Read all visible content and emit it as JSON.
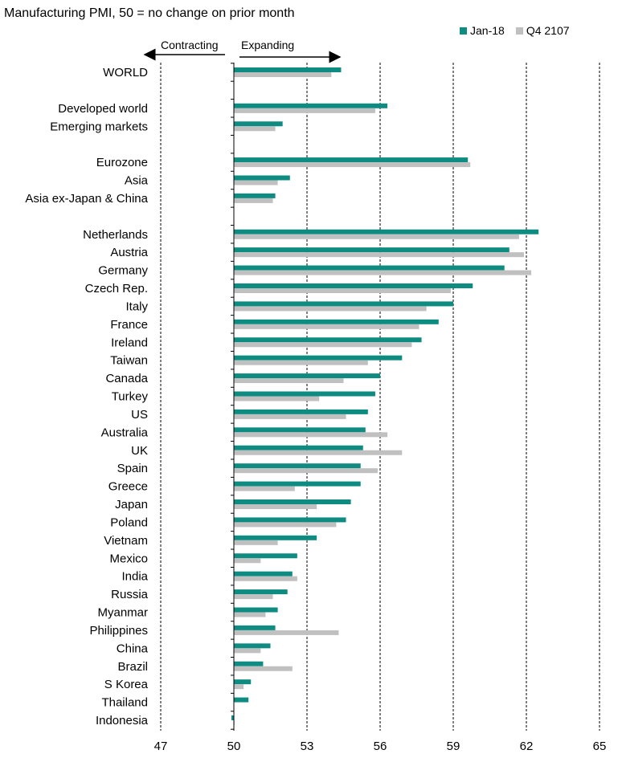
{
  "chart_data": {
    "type": "bar",
    "orientation": "horizontal",
    "title": "Manufacturing PMI, 50 = no change on prior month",
    "annotations": {
      "left": "Contracting",
      "right": "Expanding"
    },
    "xlim": [
      47,
      65
    ],
    "baseline": 50,
    "ticks": [
      "47",
      "50",
      "53",
      "56",
      "59",
      "62",
      "65"
    ],
    "tick_values": [
      47,
      50,
      53,
      56,
      59,
      62,
      65
    ],
    "grid": "vertical dashed",
    "legend_position": "top-right",
    "categories": [
      "WORLD",
      "",
      "Developed world",
      "Emerging markets",
      "",
      "Eurozone",
      "Asia",
      "Asia ex-Japan & China",
      "",
      "Netherlands",
      "Austria",
      "Germany",
      "Czech Rep.",
      "Italy",
      "France",
      "Ireland",
      "Taiwan",
      "Canada",
      "Turkey",
      "US",
      "Australia",
      "UK",
      "Spain",
      "Greece",
      "Japan",
      "Poland",
      "Vietnam",
      "Mexico",
      "India",
      "Russia",
      "Myanmar",
      "Philippines",
      "China",
      "Brazil",
      "S Korea",
      "Thailand",
      "Indonesia"
    ],
    "series": [
      {
        "name": "Jan-18",
        "color": "#0e8c82",
        "values": [
          54.4,
          null,
          56.3,
          52.0,
          null,
          59.6,
          52.3,
          51.7,
          null,
          62.5,
          61.3,
          61.1,
          59.8,
          59.0,
          58.4,
          57.7,
          56.9,
          56.0,
          55.8,
          55.5,
          55.4,
          55.3,
          55.2,
          55.2,
          54.8,
          54.6,
          53.4,
          52.6,
          52.4,
          52.2,
          51.8,
          51.7,
          51.5,
          51.2,
          50.7,
          50.6,
          49.9
        ]
      },
      {
        "name": "Q4 2107",
        "color": "#c0c0c0",
        "values": [
          54.0,
          null,
          55.8,
          51.7,
          null,
          59.7,
          51.8,
          51.6,
          null,
          61.7,
          61.9,
          62.2,
          58.9,
          57.9,
          57.6,
          57.3,
          55.5,
          54.5,
          53.5,
          54.6,
          56.3,
          56.9,
          55.9,
          52.5,
          53.4,
          54.2,
          51.8,
          51.1,
          52.6,
          51.6,
          51.3,
          54.3,
          51.1,
          52.4,
          50.4,
          null,
          50.0
        ]
      }
    ]
  }
}
